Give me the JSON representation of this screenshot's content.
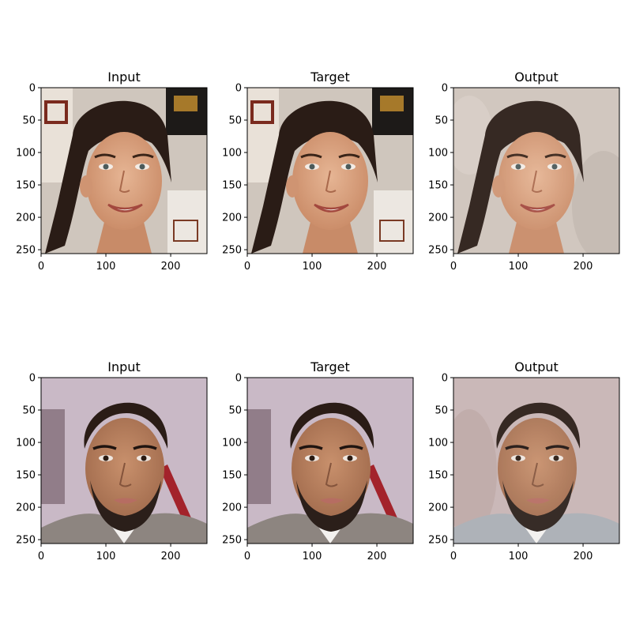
{
  "figure": {
    "panels": [
      {
        "title": "Input",
        "subject": "woman",
        "variant": "photo"
      },
      {
        "title": "Target",
        "subject": "woman",
        "variant": "photo"
      },
      {
        "title": "Output",
        "subject": "woman",
        "variant": "generated"
      },
      {
        "title": "Input",
        "subject": "man",
        "variant": "photo"
      },
      {
        "title": "Target",
        "subject": "man",
        "variant": "photo"
      },
      {
        "title": "Output",
        "subject": "man",
        "variant": "generated"
      }
    ],
    "axes": {
      "x_ticks": [
        "0",
        "100",
        "200"
      ],
      "y_ticks": [
        "0",
        "50",
        "100",
        "150",
        "200",
        "250"
      ],
      "x_tick_values": [
        0,
        100,
        200
      ],
      "y_tick_values": [
        0,
        50,
        100,
        150,
        200,
        250
      ],
      "pixel_range": [
        0,
        256
      ]
    },
    "palette": {
      "skin_woman": "#d9a07c",
      "skin_man": "#b9805f",
      "hair": "#2a1c16",
      "bg_woman_photo": "#cfc6bd",
      "bg_woman_generated": "#cfc4bb",
      "bg_man_photo": "#c9b9c6",
      "bg_man_generated": "#c7b4b4"
    }
  }
}
